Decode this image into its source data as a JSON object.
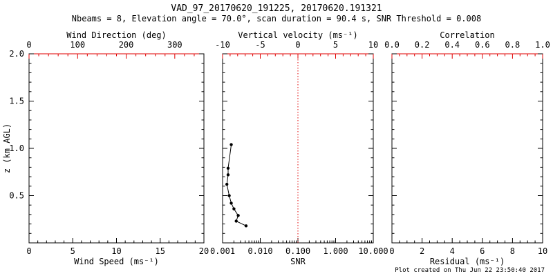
{
  "title": "VAD_97_20170620_191225, 20170620.191321",
  "subtitle": "Nbeams = 8, Elevation angle = 70.0°, scan duration = 90.4 s, SNR Threshold = 0.008",
  "footer": "Plot created on Thu Jun 22 23:50:40 2017",
  "colors": {
    "background": "#ffffff",
    "axis": "#000000",
    "accent_red": "#e00000",
    "data": "#000000"
  },
  "chart_data": [
    {
      "name": "wind-speed-panel",
      "type": "scatter",
      "x_bottom": {
        "label": "Wind Speed (ms⁻¹)",
        "scale": "linear",
        "range": [
          0,
          20
        ],
        "ticks": [
          0,
          5,
          10,
          15,
          20
        ],
        "tick_labels": [
          "0",
          "5",
          "10",
          "15",
          "20"
        ],
        "minor_divisions": 5,
        "color": "#000000"
      },
      "x_top": {
        "label": "Wind Direction (deg)",
        "scale": "linear",
        "range": [
          0,
          360
        ],
        "ticks": [
          0,
          100,
          200,
          300
        ],
        "tick_labels": [
          "0",
          "100",
          "200",
          "300"
        ],
        "minor_divisions": 5,
        "color": "#e00000"
      },
      "y_left": {
        "label": "z (km AGL)",
        "scale": "linear",
        "range": [
          0,
          2
        ],
        "ticks": [
          0,
          0.5,
          1.0,
          1.5,
          2.0
        ],
        "tick_labels": [
          "",
          "0.5",
          "1.0",
          "1.5",
          "2.0"
        ],
        "minor_divisions": 5,
        "show_labels": true,
        "color": "#000000"
      },
      "series": [],
      "ref_lines": []
    },
    {
      "name": "snr-panel",
      "type": "scatter",
      "x_bottom": {
        "label": "SNR",
        "scale": "log",
        "range": [
          0.001,
          10
        ],
        "ticks": [
          0.001,
          0.01,
          0.1,
          1,
          10
        ],
        "tick_labels": [
          "0.001",
          "0.010",
          "0.100",
          "1.000",
          "10.000"
        ],
        "color": "#000000"
      },
      "x_top": {
        "label": "Vertical velocity (ms⁻¹)",
        "scale": "linear",
        "range": [
          -10,
          10
        ],
        "ticks": [
          -10,
          -5,
          0,
          5,
          10
        ],
        "tick_labels": [
          "-10",
          "-5",
          "0",
          "5",
          "10"
        ],
        "minor_divisions": 5,
        "color": "#e00000"
      },
      "y_left": {
        "label": "",
        "scale": "linear",
        "range": [
          0,
          2
        ],
        "ticks": [
          0,
          0.5,
          1.0,
          1.5,
          2.0
        ],
        "tick_labels": [
          "",
          "",
          "",
          "",
          ""
        ],
        "minor_divisions": 5,
        "show_labels": false,
        "color": "#000000"
      },
      "series": [
        {
          "name": "snr-profile",
          "marker": "circle",
          "line": true,
          "color": "#000000",
          "points_xy_units": "SNR vs z (km AGL)",
          "points": [
            [
              0.0017,
              1.04
            ],
            [
              0.0014,
              0.79
            ],
            [
              0.0014,
              0.72
            ],
            [
              0.0013,
              0.62
            ],
            [
              0.0015,
              0.5
            ],
            [
              0.0017,
              0.42
            ],
            [
              0.002,
              0.36
            ],
            [
              0.0026,
              0.29
            ],
            [
              0.0023,
              0.23
            ],
            [
              0.0042,
              0.18
            ]
          ]
        }
      ],
      "ref_lines": [
        {
          "orientation": "vertical",
          "value": 0.1,
          "meaning": "vertical velocity = 0",
          "color": "#e00000",
          "style": "dotted"
        }
      ]
    },
    {
      "name": "residual-panel",
      "type": "scatter",
      "x_bottom": {
        "label": "Residual (ms⁻¹)",
        "scale": "linear",
        "range": [
          0,
          10
        ],
        "ticks": [
          0,
          2,
          4,
          6,
          8,
          10
        ],
        "tick_labels": [
          "0",
          "2",
          "4",
          "6",
          "8",
          "10"
        ],
        "minor_divisions": 4,
        "color": "#000000"
      },
      "x_top": {
        "label": "Correlation",
        "scale": "linear",
        "range": [
          0,
          1
        ],
        "ticks": [
          0,
          0.2,
          0.4,
          0.6,
          0.8,
          1.0
        ],
        "tick_labels": [
          "0.0",
          "0.2",
          "0.4",
          "0.6",
          "0.8",
          "1.0"
        ],
        "minor_divisions": 4,
        "color": "#e00000"
      },
      "y_left": {
        "label": "",
        "scale": "linear",
        "range": [
          0,
          2
        ],
        "ticks": [
          0,
          0.5,
          1.0,
          1.5,
          2.0
        ],
        "tick_labels": [
          "",
          "",
          "",
          "",
          ""
        ],
        "minor_divisions": 5,
        "show_labels": false,
        "color": "#000000"
      },
      "series": [],
      "ref_lines": []
    }
  ]
}
